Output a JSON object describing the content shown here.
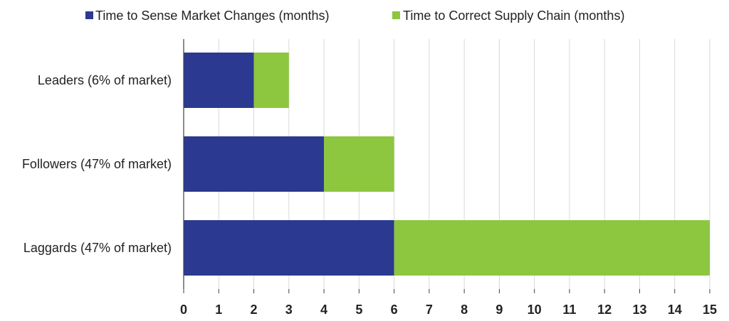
{
  "chart_data": {
    "type": "bar",
    "orientation": "horizontal",
    "stacked": true,
    "categories": [
      "Leaders (6% of market)",
      "Followers (47% of market)",
      "Laggards (47% of market)"
    ],
    "series": [
      {
        "name": "Time to Sense Market Changes (months)",
        "values": [
          2,
          4,
          6
        ],
        "color": "#2b3990"
      },
      {
        "name": "Time to Correct Supply Chain (months)",
        "values": [
          1,
          2,
          9
        ],
        "color": "#8dc63f"
      }
    ],
    "xlim": [
      0,
      15
    ],
    "xticks": [
      "0",
      "1",
      "2",
      "3",
      "4",
      "5",
      "6",
      "7",
      "8",
      "9",
      "10",
      "11",
      "12",
      "13",
      "14",
      "15"
    ],
    "grid": true,
    "legend_position": "top"
  }
}
